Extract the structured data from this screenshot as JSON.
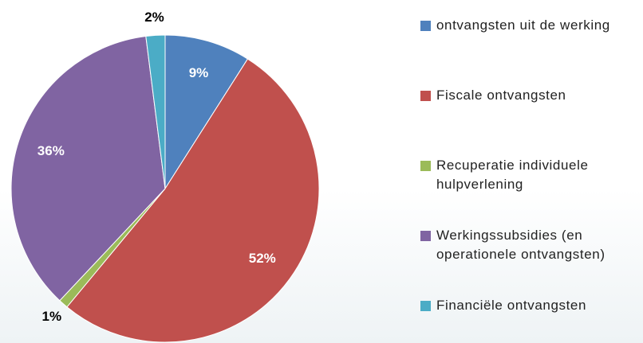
{
  "chart_data": {
    "type": "pie",
    "categories": [
      "ontvangsten uit de werking",
      "Fiscale ontvangsten",
      "Recuperatie individuele hulpverlening",
      "Werkingssubsidies (en operationele ontvangsten)",
      "Financiële ontvangsten"
    ],
    "values": [
      9,
      52,
      1,
      36,
      2
    ],
    "value_labels": [
      "9%",
      "52%",
      "1%",
      "36%",
      "2%"
    ],
    "colors": [
      "#4f81bd",
      "#c0504d",
      "#9bbb59",
      "#8064a2",
      "#4bacc6"
    ]
  }
}
